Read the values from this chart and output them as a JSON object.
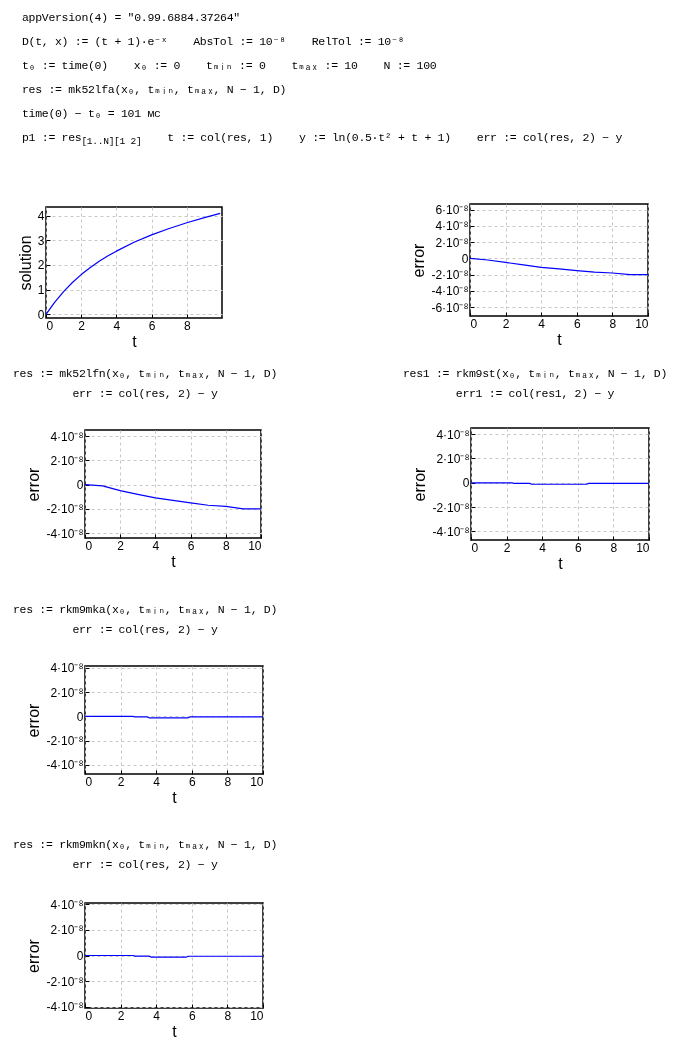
{
  "chart_data": [
    {
      "type": "line",
      "xlabel": "t",
      "ylabel": "solution",
      "xlim": [
        0,
        10
      ],
      "xticks": [
        0,
        2,
        4,
        6,
        8
      ],
      "ylim": [
        -0.15,
        4.35
      ],
      "yticks": [
        0,
        1,
        2,
        3,
        4
      ],
      "grid": true,
      "color": "#0000ff",
      "x": [
        0,
        0.5,
        1,
        1.5,
        2,
        2.5,
        3,
        3.5,
        4,
        5,
        6,
        7,
        8,
        9,
        9.9
      ],
      "values": [
        0,
        0.49,
        0.92,
        1.29,
        1.61,
        1.89,
        2.14,
        2.36,
        2.56,
        2.92,
        3.22,
        3.48,
        3.71,
        3.92,
        4.09
      ],
      "annotations": [
        "appVersion(4) = \"0.99.6884.37264\"",
        "D(t, x) := (t + 1)·e⁻ˣ",
        "AbsTol := 10⁻⁸",
        "RelTol := 10⁻⁸",
        "t₀ := time(0)",
        "x₀ := 0",
        "tₘᵢₙ := 0",
        "tₘₐₓ := 10",
        "N := 100",
        "res := mk52lfa(x₀, tₘᵢₙ, tₘₐₓ, N − 1, D)",
        "time(0) − t₀ = 101 мс",
        "p1 := res$_{[1..N][1 2]}$",
        "t := col(res, 1)",
        "y := ln(0.5·t² + t + 1)",
        "err := col(res, 2) − y"
      ]
    },
    {
      "type": "line",
      "xlabel": "t",
      "ylabel": "error",
      "xlim": [
        0,
        10
      ],
      "xticks": [
        0,
        2,
        4,
        6,
        8,
        10
      ],
      "ylim": [
        -7.1e-08,
        6.7e-08
      ],
      "grid": true,
      "color": "#0000ff",
      "yticks": [
        {
          "value": 6e-08,
          "label": "6·10⁻⁸"
        },
        {
          "value": 4e-08,
          "label": "4·10⁻⁸"
        },
        {
          "value": 2e-08,
          "label": "2·10⁻⁸"
        },
        0,
        {
          "value": -2e-08,
          "label": "-2·10⁻⁸"
        },
        {
          "value": -4e-08,
          "label": "-4·10⁻⁸"
        },
        {
          "value": -6e-08,
          "label": "-6·10⁻⁸"
        }
      ],
      "x": [
        0,
        1,
        2,
        3,
        4,
        5,
        6,
        7,
        8,
        9,
        10
      ],
      "values": [
        0,
        -2e-09,
        -5e-09,
        -8e-09,
        -1.1e-08,
        -1.3e-08,
        -1.5e-08,
        -1.7e-08,
        -1.8e-08,
        -2e-08,
        -2e-08
      ]
    },
    {
      "type": "line",
      "xlabel": "t",
      "ylabel": "error",
      "xlim": [
        0,
        10
      ],
      "xticks": [
        0,
        2,
        4,
        6,
        8,
        10
      ],
      "ylim": [
        -4.4e-08,
        4.5e-08
      ],
      "grid": true,
      "color": "#0000ff",
      "yticks": [
        {
          "value": 4e-08,
          "label": "4·10⁻⁸"
        },
        {
          "value": 2e-08,
          "label": "2·10⁻⁸"
        },
        0,
        {
          "value": -2e-08,
          "label": "-2·10⁻⁸"
        },
        {
          "value": -4e-08,
          "label": "-4·10⁻⁸"
        }
      ],
      "x": [
        0,
        1,
        2,
        3,
        4,
        5,
        6,
        7,
        8,
        9,
        10
      ],
      "values": [
        0,
        -1e-09,
        -5e-09,
        -8e-09,
        -1.1e-08,
        -1.3e-08,
        -1.5e-08,
        -1.7e-08,
        -1.8e-08,
        -2e-08,
        -2e-08
      ],
      "annotations": [
        "res := mk52lfn(x₀, tₘᵢₙ, tₘₐₓ, N − 1, D)",
        "err := col(res, 2) − y"
      ]
    },
    {
      "type": "line",
      "xlabel": "t",
      "ylabel": "error",
      "xlim": [
        0,
        10
      ],
      "xticks": [
        0,
        2,
        4,
        6,
        8,
        10
      ],
      "ylim": [
        -4.7e-08,
        4.5e-08
      ],
      "grid": true,
      "color": "#0000ff",
      "yticks": [
        {
          "value": 4e-08,
          "label": "4·10⁻⁸"
        },
        {
          "value": 2e-08,
          "label": "2·10⁻⁸"
        },
        0,
        {
          "value": -2e-08,
          "label": "-2·10⁻⁸"
        },
        {
          "value": -4e-08,
          "label": "-4·10⁻⁸"
        }
      ],
      "x": [
        0,
        2.3,
        2.4,
        3.3,
        3.4,
        6.5,
        6.6,
        10
      ],
      "values": [
        0,
        0,
        -5e-10,
        -5e-10,
        -1.2e-09,
        -1.2e-09,
        -5e-10,
        -5e-10
      ],
      "annotations": [
        "res1 := rkm9st(x₀, tₘᵢₙ, tₘₐₓ, N − 1, D)",
        "err1 := col(res1, 2) − y"
      ]
    },
    {
      "type": "line",
      "xlabel": "t",
      "ylabel": "error",
      "xlim": [
        0,
        10
      ],
      "xticks": [
        0,
        2,
        4,
        6,
        8,
        10
      ],
      "ylim": [
        -4.75e-08,
        4.15e-08
      ],
      "grid": true,
      "color": "#0000ff",
      "yticks": [
        {
          "value": 4e-08,
          "label": "4·10⁻⁸"
        },
        {
          "value": 2e-08,
          "label": "2·10⁻⁸"
        },
        0,
        {
          "value": -2e-08,
          "label": "-2·10⁻⁸"
        },
        {
          "value": -4e-08,
          "label": "-4·10⁻⁸"
        }
      ],
      "x": [
        0,
        2.7,
        2.8,
        3.5,
        3.6,
        5.8,
        5.9,
        10
      ],
      "values": [
        0,
        0,
        -5e-10,
        -5e-10,
        -1.2e-09,
        -1.2e-09,
        -5e-10,
        -5e-10
      ],
      "annotations": [
        "res := rkm9mka(x₀, tₘᵢₙ, tₘₐₓ, N − 1, D)",
        "err := col(res, 2) − y"
      ]
    },
    {
      "type": "line",
      "xlabel": "t",
      "ylabel": "error",
      "xlim": [
        0,
        10
      ],
      "xticks": [
        0,
        2,
        4,
        6,
        8,
        10
      ],
      "ylim": [
        -4.1e-08,
        4.1e-08
      ],
      "grid": true,
      "color": "#0000ff",
      "yticks": [
        {
          "value": 4e-08,
          "label": "4·10⁻⁸"
        },
        {
          "value": 2e-08,
          "label": "2·10⁻⁸"
        },
        0,
        {
          "value": -2e-08,
          "label": "-2·10⁻⁸"
        },
        {
          "value": -4e-08,
          "label": "-4·10⁻⁸"
        }
      ],
      "x": [
        0,
        2.7,
        2.8,
        3.6,
        3.7,
        5.7,
        5.8,
        10
      ],
      "values": [
        0,
        0,
        -5e-10,
        -5e-10,
        -1.2e-09,
        -1.2e-09,
        -6e-10,
        -6e-10
      ],
      "annotations": [
        "res := rkm9mkn(x₀, tₘᵢₙ, tₘₐₓ, N − 1, D)",
        "err := col(res, 2) − y"
      ]
    }
  ]
}
